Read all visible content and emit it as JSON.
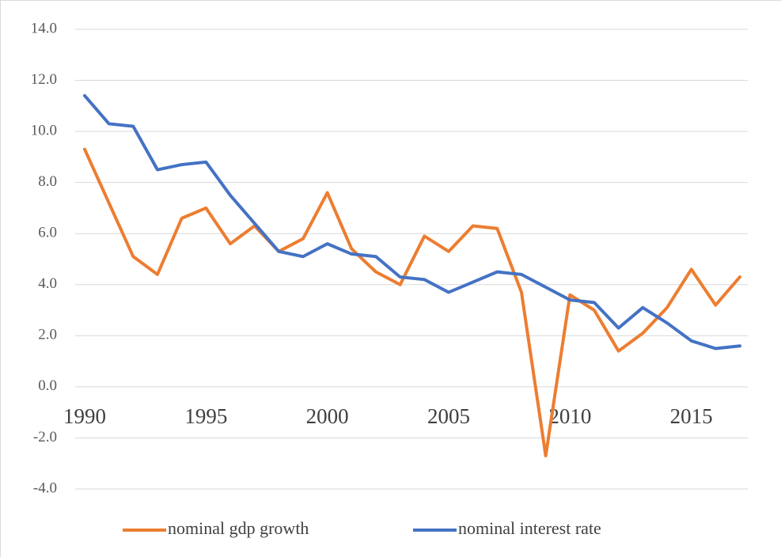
{
  "chart_data": {
    "type": "line",
    "x": [
      1990,
      1991,
      1992,
      1993,
      1994,
      1995,
      1996,
      1997,
      1998,
      1999,
      2000,
      2001,
      2002,
      2003,
      2004,
      2005,
      2006,
      2007,
      2008,
      2009,
      2010,
      2011,
      2012,
      2013,
      2014,
      2015,
      2016,
      2017
    ],
    "xlim": [
      1990,
      2017
    ],
    "xticks": [
      1990,
      1995,
      2000,
      2005,
      2010,
      2015
    ],
    "ylim": [
      -4,
      14
    ],
    "yticks": [
      {
        "value": -4,
        "label": "-4.0"
      },
      {
        "value": -2,
        "label": "-2.0"
      },
      {
        "value": 0,
        "label": "0.0"
      },
      {
        "value": 2,
        "label": "2.0"
      },
      {
        "value": 4,
        "label": "4.0"
      },
      {
        "value": 6,
        "label": "6.0"
      },
      {
        "value": 8,
        "label": "8.0"
      },
      {
        "value": 10,
        "label": "10.0"
      },
      {
        "value": 12,
        "label": "12.0"
      },
      {
        "value": 14,
        "label": "14.0"
      }
    ],
    "grid": true,
    "legend": "bottom",
    "series": [
      {
        "name": "nominal gdp growth",
        "color": "#ed7d31",
        "values": [
          9.3,
          7.2,
          5.1,
          4.4,
          6.6,
          7.0,
          5.6,
          6.3,
          5.3,
          5.8,
          7.6,
          5.4,
          4.5,
          4.0,
          5.9,
          5.3,
          6.3,
          6.2,
          3.7,
          -2.7,
          3.6,
          3.0,
          1.4,
          2.1,
          3.1,
          4.6,
          3.2,
          4.3
        ]
      },
      {
        "name": "nominal interest rate",
        "color": "#4472c4",
        "values": [
          11.4,
          10.3,
          10.2,
          8.5,
          8.7,
          8.8,
          7.5,
          6.4,
          5.3,
          5.1,
          5.6,
          5.2,
          5.1,
          4.3,
          4.2,
          3.7,
          4.1,
          4.5,
          4.4,
          3.9,
          3.4,
          3.3,
          2.3,
          3.1,
          2.5,
          1.8,
          1.5,
          1.6
        ]
      }
    ]
  }
}
